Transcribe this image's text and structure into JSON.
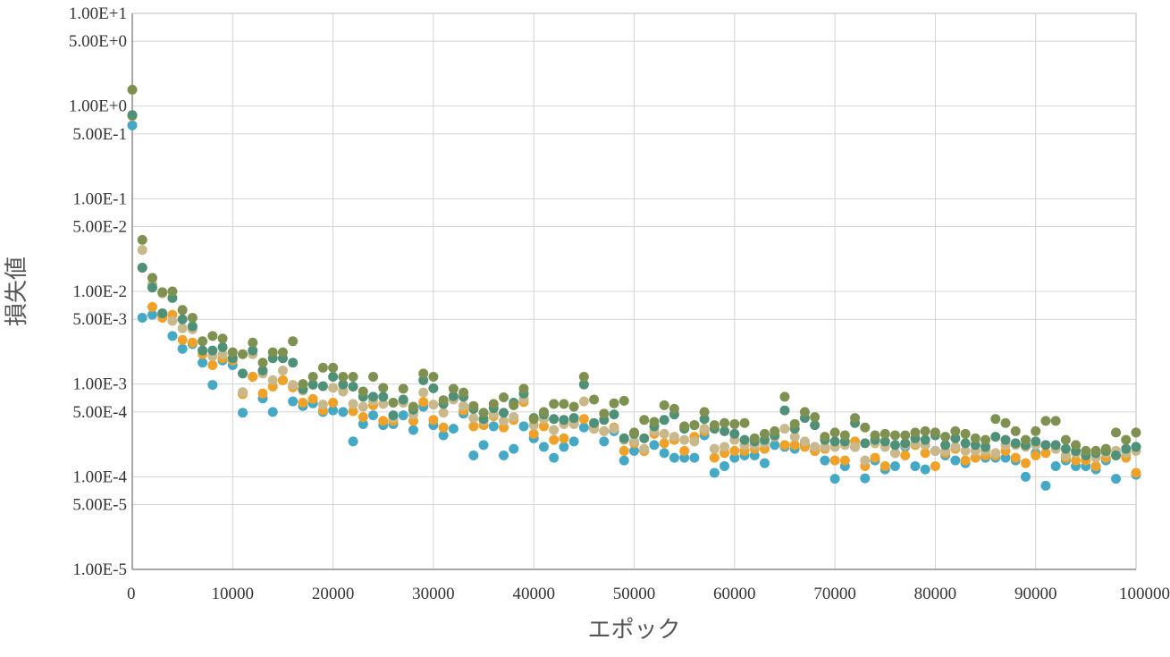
{
  "chart_data": {
    "type": "scatter",
    "xlabel": "エポック",
    "ylabel": "損失値",
    "x_ticks": [
      "0",
      "10000",
      "20000",
      "30000",
      "40000",
      "50000",
      "60000",
      "70000",
      "80000",
      "90000",
      "100000"
    ],
    "xlim": [
      0,
      100000
    ],
    "y_scale": "log",
    "ylim": [
      1e-05,
      10
    ],
    "y_ticks": [
      {
        "label": "1.00E+1",
        "value": 10
      },
      {
        "label": "5.00E+0",
        "value": 5
      },
      {
        "label": "1.00E+0",
        "value": 1
      },
      {
        "label": "5.00E-1",
        "value": 0.5
      },
      {
        "label": "1.00E-1",
        "value": 0.1
      },
      {
        "label": "5.00E-2",
        "value": 0.05
      },
      {
        "label": "1.00E-2",
        "value": 0.01
      },
      {
        "label": "5.00E-3",
        "value": 0.005
      },
      {
        "label": "1.00E-3",
        "value": 0.001
      },
      {
        "label": "5.00E-4",
        "value": 0.0005
      },
      {
        "label": "1.00E-4",
        "value": 0.0001
      },
      {
        "label": "5.00E-5",
        "value": 5e-05
      },
      {
        "label": "1.00E-5",
        "value": 1e-05
      }
    ],
    "grid": true,
    "legend": "none",
    "x": [
      0,
      1000,
      2000,
      3000,
      4000,
      5000,
      6000,
      7000,
      8000,
      9000,
      10000,
      11000,
      12000,
      13000,
      14000,
      15000,
      16000,
      17000,
      18000,
      19000,
      20000,
      21000,
      22000,
      23000,
      24000,
      25000,
      26000,
      27000,
      28000,
      29000,
      30000,
      31000,
      32000,
      33000,
      34000,
      35000,
      36000,
      37000,
      38000,
      39000,
      40000,
      41000,
      42000,
      43000,
      44000,
      45000,
      46000,
      47000,
      48000,
      49000,
      50000,
      51000,
      52000,
      53000,
      54000,
      55000,
      56000,
      57000,
      58000,
      59000,
      60000,
      61000,
      62000,
      63000,
      64000,
      65000,
      66000,
      67000,
      68000,
      69000,
      70000,
      71000,
      72000,
      73000,
      74000,
      75000,
      76000,
      77000,
      78000,
      79000,
      80000,
      81000,
      82000,
      83000,
      84000,
      85000,
      86000,
      87000,
      88000,
      89000,
      90000,
      91000,
      92000,
      93000,
      94000,
      95000,
      96000,
      97000,
      98000,
      99000,
      100000
    ],
    "series": [
      {
        "color": "#45a9c6",
        "values": [
          0.62,
          0.0052,
          0.0056,
          0.0055,
          0.0033,
          0.0024,
          0.0027,
          0.0017,
          0.00098,
          0.0018,
          0.0016,
          0.00049,
          0.0012,
          0.0007,
          0.0005,
          0.0011,
          0.00065,
          0.00058,
          0.00062,
          0.0005,
          0.00052,
          0.0005,
          0.00024,
          0.00037,
          0.00046,
          0.00036,
          0.00037,
          0.00046,
          0.00032,
          0.00057,
          0.00036,
          0.00028,
          0.00033,
          0.00048,
          0.00017,
          0.00022,
          0.00035,
          0.00017,
          0.0002,
          0.00035,
          0.00026,
          0.00021,
          0.00016,
          0.00021,
          0.00024,
          0.00034,
          0.00033,
          0.00024,
          0.00031,
          0.00015,
          0.00019,
          0.00019,
          0.00022,
          0.00018,
          0.00016,
          0.00016,
          0.00016,
          0.00028,
          0.00011,
          0.00013,
          0.00016,
          0.00017,
          0.00017,
          0.00014,
          0.00022,
          0.00021,
          0.0002,
          0.00022,
          0.00019,
          0.00015,
          9.5e-05,
          0.00013,
          0.00021,
          9.6e-05,
          0.00015,
          0.00012,
          0.00013,
          0.00021,
          0.00013,
          0.00012,
          0.00019,
          0.00017,
          0.00015,
          0.00014,
          0.00016,
          0.00016,
          0.00016,
          0.00016,
          0.00015,
          0.0001,
          0.00018,
          8e-05,
          0.00013,
          0.00015,
          0.00013,
          0.00013,
          0.00012,
          0.00015,
          9.5e-05,
          0.00017,
          0.000105
        ]
      },
      {
        "color": "#f0a228",
        "values": [
          0.78,
          0.018,
          0.0068,
          0.0052,
          0.0056,
          0.003,
          0.0028,
          0.0021,
          0.0016,
          0.0019,
          0.0018,
          0.00078,
          0.0012,
          0.00079,
          0.00094,
          0.0011,
          0.00092,
          0.00063,
          0.00069,
          0.00052,
          0.00063,
          0.00085,
          0.00051,
          0.00044,
          0.00059,
          0.0004,
          0.0004,
          0.00067,
          0.0004,
          0.00064,
          0.00041,
          0.00034,
          0.00071,
          0.00052,
          0.00035,
          0.00036,
          0.00045,
          0.00034,
          0.00041,
          0.00064,
          0.00029,
          0.00035,
          0.00025,
          0.00026,
          0.00039,
          0.00042,
          0.00035,
          0.00031,
          0.00034,
          0.00019,
          0.00023,
          0.00019,
          0.00029,
          0.00023,
          0.00025,
          0.00019,
          0.00027,
          0.00031,
          0.00016,
          0.00018,
          0.00019,
          0.00019,
          0.0002,
          0.0002,
          0.00027,
          0.00022,
          0.00022,
          0.00021,
          0.00019,
          0.0002,
          0.00015,
          0.00015,
          0.00024,
          0.00013,
          0.00016,
          0.00013,
          0.00018,
          0.00017,
          0.00022,
          0.00018,
          0.00013,
          0.00018,
          0.0002,
          0.00015,
          0.00016,
          0.00017,
          0.00017,
          0.00019,
          0.00016,
          0.00014,
          0.00017,
          0.00018,
          0.0002,
          0.00016,
          0.00015,
          0.00015,
          0.00013,
          0.00016,
          0.00017,
          0.00016,
          0.00011
        ]
      },
      {
        "color": "#c8b88c",
        "values": [
          0.8,
          0.028,
          0.012,
          0.0095,
          0.0048,
          0.004,
          0.0039,
          0.0023,
          0.002,
          0.0021,
          0.0019,
          0.00082,
          0.0021,
          0.0013,
          0.0011,
          0.0014,
          0.00098,
          0.00085,
          0.00098,
          0.0006,
          0.00091,
          0.00083,
          0.00061,
          0.00057,
          0.00066,
          0.00061,
          0.00043,
          0.00063,
          0.00047,
          0.00081,
          0.0006,
          0.00049,
          0.00068,
          0.00058,
          0.00043,
          0.0004,
          0.00047,
          0.0004,
          0.00044,
          0.00069,
          0.00036,
          0.00042,
          0.00032,
          0.00037,
          0.00037,
          0.00065,
          0.00033,
          0.00031,
          0.00033,
          0.00025,
          0.00024,
          0.0002,
          0.00031,
          0.00029,
          0.00027,
          0.00025,
          0.00024,
          0.00033,
          0.0002,
          0.00021,
          0.00025,
          0.00022,
          0.00022,
          0.00023,
          0.00027,
          0.00033,
          0.00027,
          0.00024,
          0.00021,
          0.00021,
          0.00021,
          0.00022,
          0.00021,
          0.00015,
          0.00023,
          0.00021,
          0.00018,
          0.00022,
          0.00023,
          0.00022,
          0.00019,
          0.00019,
          0.00021,
          0.00019,
          0.00019,
          0.00019,
          0.00018,
          0.00022,
          0.00022,
          0.00021,
          0.00022,
          0.00022,
          0.0002,
          0.00017,
          0.00018,
          0.00017,
          0.00016,
          0.00018,
          0.00019,
          0.00018,
          0.00019
        ]
      },
      {
        "color": "#4f9078",
        "values": [
          0.8,
          0.018,
          0.011,
          0.0058,
          0.0085,
          0.005,
          0.0042,
          0.0023,
          0.0023,
          0.0025,
          0.0019,
          0.0013,
          0.0023,
          0.0014,
          0.0019,
          0.0019,
          0.0017,
          0.00088,
          0.00099,
          0.00095,
          0.0012,
          0.00099,
          0.00094,
          0.00073,
          0.00073,
          0.00073,
          0.00046,
          0.00068,
          0.00053,
          0.0011,
          0.0009,
          0.00061,
          0.00074,
          0.00073,
          0.00054,
          0.00042,
          0.00055,
          0.00049,
          0.00063,
          0.00079,
          0.00043,
          0.00047,
          0.00042,
          0.00041,
          0.00043,
          0.00099,
          0.00038,
          0.00041,
          0.00047,
          0.00026,
          0.00029,
          0.00026,
          0.00035,
          0.00041,
          0.00047,
          0.00033,
          0.00036,
          0.00042,
          0.00033,
          0.00031,
          0.00029,
          0.00025,
          0.00024,
          0.00025,
          0.00028,
          0.00052,
          0.00033,
          0.00043,
          0.00036,
          0.00025,
          0.00024,
          0.00024,
          0.00038,
          0.00023,
          0.00025,
          0.00024,
          0.00022,
          0.00023,
          0.00026,
          0.00025,
          0.00028,
          0.00022,
          0.00026,
          0.00023,
          0.00022,
          0.00021,
          0.00027,
          0.00025,
          0.00023,
          0.00022,
          0.00024,
          0.00022,
          0.00022,
          0.0002,
          0.00019,
          0.00017,
          0.00018,
          0.00019,
          0.00017,
          0.0002,
          0.00021
        ]
      },
      {
        "color": "#7f9150",
        "values": [
          1.5,
          0.036,
          0.014,
          0.0098,
          0.01,
          0.0063,
          0.0052,
          0.0029,
          0.0033,
          0.0031,
          0.0022,
          0.0021,
          0.0028,
          0.0017,
          0.0022,
          0.0022,
          0.0029,
          0.001,
          0.0012,
          0.0015,
          0.0015,
          0.0012,
          0.0012,
          0.00083,
          0.0012,
          0.00091,
          0.00063,
          0.00089,
          0.00057,
          0.0013,
          0.0012,
          0.00067,
          0.00089,
          0.00081,
          0.00058,
          0.00049,
          0.00061,
          0.00072,
          0.00059,
          0.00089,
          0.00042,
          0.0005,
          0.00061,
          0.00061,
          0.00057,
          0.0012,
          0.00068,
          0.00048,
          0.00062,
          0.00066,
          0.0003,
          0.00041,
          0.00039,
          0.00059,
          0.00054,
          0.00035,
          0.00036,
          0.0005,
          0.00036,
          0.00038,
          0.00037,
          0.00038,
          0.00026,
          0.00029,
          0.00031,
          0.00073,
          0.00037,
          0.0005,
          0.00044,
          0.00027,
          0.0003,
          0.00028,
          0.00043,
          0.00034,
          0.00028,
          0.00029,
          0.00028,
          0.00028,
          0.0003,
          0.00031,
          0.0003,
          0.00027,
          0.00031,
          0.00029,
          0.00026,
          0.00025,
          0.00042,
          0.00038,
          0.00031,
          0.00025,
          0.00031,
          0.0004,
          0.0004,
          0.00025,
          0.00022,
          0.00019,
          0.00019,
          0.0002,
          0.0003,
          0.00025,
          0.0003
        ]
      }
    ]
  }
}
